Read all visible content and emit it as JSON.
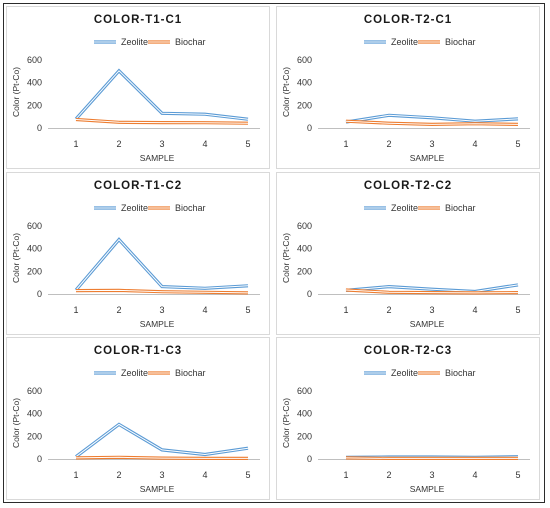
{
  "chart_data": [
    {
      "type": "line",
      "title": "COLOR-T1-C1",
      "xlabel": "SAMPLE",
      "ylabel": "Color (Pt-Co)",
      "categories": [
        "1",
        "2",
        "3",
        "4",
        "5"
      ],
      "ylim": [
        0,
        600
      ],
      "yticks": [
        "0",
        "200",
        "400",
        "600"
      ],
      "legend_position": "top",
      "grid": false,
      "series": [
        {
          "name": "Zeolite",
          "values": [
            80,
            505,
            130,
            122,
            78
          ]
        },
        {
          "name": "Biochar",
          "values": [
            75,
            50,
            48,
            47,
            42
          ]
        }
      ]
    },
    {
      "type": "line",
      "title": "COLOR-T2-C1",
      "xlabel": "SAMPLE",
      "ylabel": "Color (Pt-Co)",
      "categories": [
        "1",
        "2",
        "3",
        "4",
        "5"
      ],
      "ylim": [
        0,
        600
      ],
      "yticks": [
        "0",
        "200",
        "400",
        "600"
      ],
      "legend_position": "top",
      "grid": false,
      "series": [
        {
          "name": "Zeolite",
          "values": [
            52,
            112,
            90,
            60,
            80
          ]
        },
        {
          "name": "Biochar",
          "values": [
            60,
            42,
            32,
            38,
            32
          ]
        }
      ]
    },
    {
      "type": "line",
      "title": "COLOR-T1-C2",
      "xlabel": "SAMPLE",
      "ylabel": "Color (Pt-Co)",
      "categories": [
        "1",
        "2",
        "3",
        "4",
        "5"
      ],
      "ylim": [
        0,
        600
      ],
      "yticks": [
        "0",
        "200",
        "400",
        "600"
      ],
      "legend_position": "top",
      "grid": false,
      "series": [
        {
          "name": "Zeolite",
          "values": [
            35,
            480,
            65,
            50,
            72
          ]
        },
        {
          "name": "Biochar",
          "values": [
            30,
            32,
            20,
            15,
            10
          ]
        }
      ]
    },
    {
      "type": "line",
      "title": "COLOR-T2-C2",
      "xlabel": "SAMPLE",
      "ylabel": "Color (Pt-Co)",
      "categories": [
        "1",
        "2",
        "3",
        "4",
        "5"
      ],
      "ylim": [
        0,
        600
      ],
      "yticks": [
        "0",
        "200",
        "400",
        "600"
      ],
      "legend_position": "top",
      "grid": false,
      "series": [
        {
          "name": "Zeolite",
          "values": [
            32,
            65,
            42,
            22,
            80
          ]
        },
        {
          "name": "Biochar",
          "values": [
            35,
            15,
            12,
            10,
            12
          ]
        }
      ]
    },
    {
      "type": "line",
      "title": "COLOR-T1-C3",
      "xlabel": "SAMPLE",
      "ylabel": "Color (Pt-Co)",
      "categories": [
        "1",
        "2",
        "3",
        "4",
        "5"
      ],
      "ylim": [
        0,
        600
      ],
      "yticks": [
        "0",
        "200",
        "400",
        "600"
      ],
      "legend_position": "top",
      "grid": false,
      "series": [
        {
          "name": "Zeolite",
          "values": [
            20,
            305,
            80,
            40,
            95
          ]
        },
        {
          "name": "Biochar",
          "values": [
            10,
            15,
            8,
            5,
            5
          ]
        }
      ]
    },
    {
      "type": "line",
      "title": "COLOR-T2-C3",
      "xlabel": "SAMPLE",
      "ylabel": "Color (Pt-Co)",
      "categories": [
        "1",
        "2",
        "3",
        "4",
        "5"
      ],
      "ylim": [
        0,
        600
      ],
      "yticks": [
        "0",
        "200",
        "400",
        "600"
      ],
      "legend_position": "top",
      "grid": false,
      "series": [
        {
          "name": "Zeolite",
          "values": [
            15,
            18,
            18,
            15,
            20
          ]
        },
        {
          "name": "Biochar",
          "values": [
            10,
            5,
            5,
            5,
            5
          ]
        }
      ]
    }
  ],
  "colors": {
    "zeolite": "#5b9bd5",
    "biochar": "#ed7d31",
    "panel_border": "#d9d9d9",
    "axis": "#bfbfbf"
  }
}
